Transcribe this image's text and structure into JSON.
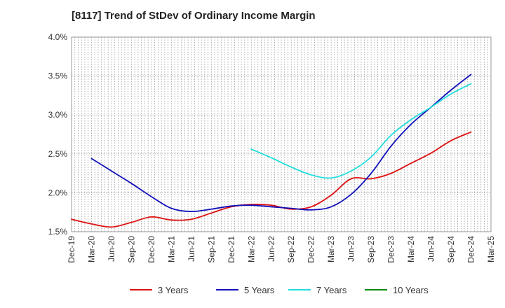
{
  "chart_data": {
    "type": "line",
    "title": "[8117]  Trend of StDev of Ordinary Income Margin",
    "xlabel": "",
    "ylabel": "",
    "x_ticks": [
      "Dec-19",
      "Mar-20",
      "Jun-20",
      "Sep-20",
      "Dec-20",
      "Mar-21",
      "Jun-21",
      "Sep-21",
      "Dec-21",
      "Mar-22",
      "Jun-22",
      "Sep-22",
      "Dec-22",
      "Mar-23",
      "Jun-23",
      "Sep-23",
      "Dec-23",
      "Mar-24",
      "Jun-24",
      "Sep-24",
      "Dec-24",
      "Mar-25"
    ],
    "y_ticks": [
      "1.5%",
      "2.0%",
      "2.5%",
      "3.0%",
      "3.5%",
      "4.0%"
    ],
    "y_tick_values": [
      1.5,
      2.0,
      2.5,
      3.0,
      3.5,
      4.0
    ],
    "ylim": [
      1.5,
      4.0
    ],
    "grid": true,
    "legend_position": "bottom",
    "series": [
      {
        "name": "3 Years",
        "color": "#dd1111",
        "x": [
          "Dec-19",
          "Mar-20",
          "Jun-20",
          "Sep-20",
          "Dec-20",
          "Mar-21",
          "Jun-21",
          "Sep-21",
          "Dec-21",
          "Mar-22",
          "Jun-22",
          "Sep-22",
          "Dec-22",
          "Mar-23",
          "Jun-23",
          "Sep-23",
          "Dec-23",
          "Mar-24",
          "Jun-24",
          "Sep-24",
          "Dec-24"
        ],
        "values": [
          1.66,
          1.6,
          1.56,
          1.62,
          1.69,
          1.65,
          1.66,
          1.74,
          1.82,
          1.85,
          1.84,
          1.79,
          1.82,
          1.97,
          2.18,
          2.18,
          2.25,
          2.38,
          2.51,
          2.67,
          2.78
        ]
      },
      {
        "name": "5 Years",
        "color": "#1111bb",
        "x": [
          "Mar-20",
          "Jun-20",
          "Sep-20",
          "Dec-20",
          "Mar-21",
          "Jun-21",
          "Sep-21",
          "Dec-21",
          "Mar-22",
          "Jun-22",
          "Sep-22",
          "Dec-22",
          "Mar-23",
          "Jun-23",
          "Sep-23",
          "Dec-23",
          "Mar-24",
          "Jun-24",
          "Sep-24",
          "Dec-24"
        ],
        "values": [
          2.44,
          2.28,
          2.12,
          1.95,
          1.8,
          1.76,
          1.79,
          1.83,
          1.84,
          1.82,
          1.8,
          1.78,
          1.82,
          1.98,
          2.25,
          2.6,
          2.88,
          3.1,
          3.32,
          3.52
        ]
      },
      {
        "name": "7 Years",
        "color": "#22dddd",
        "x": [
          "Mar-22",
          "Jun-22",
          "Sep-22",
          "Dec-22",
          "Mar-23",
          "Jun-23",
          "Sep-23",
          "Dec-23",
          "Mar-24",
          "Jun-24",
          "Sep-24",
          "Dec-24"
        ],
        "values": [
          2.56,
          2.45,
          2.33,
          2.23,
          2.19,
          2.28,
          2.46,
          2.74,
          2.94,
          3.1,
          3.27,
          3.4
        ]
      },
      {
        "name": "10 Years",
        "color": "#118811",
        "x": [],
        "values": []
      }
    ]
  }
}
